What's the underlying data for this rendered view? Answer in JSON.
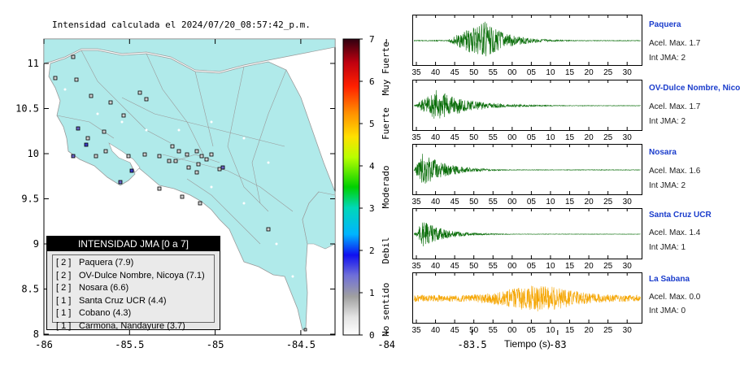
{
  "map": {
    "title": "Intensidad calculada el 2024/07/20_08:57:42_p.m.",
    "x_ticks": [
      "-86",
      "-85.5",
      "-85",
      "-84.5",
      "-84",
      "-83.5",
      "-83"
    ],
    "y_ticks": [
      "11",
      "10.5",
      "10",
      "9.5",
      "9",
      "8.5",
      "8"
    ],
    "land_color": "#b0eaea",
    "ocean_color": "#ffffff"
  },
  "colorbar": {
    "ticks": [
      "0",
      "1",
      "2",
      "3",
      "4",
      "5",
      "6",
      "7"
    ],
    "labels": [
      "No sentido",
      "Debil",
      "Moderado",
      "Fuerte",
      "Muy Fuerte"
    ]
  },
  "legend": {
    "header": "INTENSIDAD JMA [0 a 7]",
    "rows": [
      {
        "level": "[ 2 ]",
        "station": "Paquera (7.9)"
      },
      {
        "level": "[ 2 ]",
        "station": "OV-Dulce Nombre, Nicoya (7.1)"
      },
      {
        "level": "[ 2 ]",
        "station": "Nosara (6.6)"
      },
      {
        "level": "[ 1 ]",
        "station": "Santa Cruz UCR (4.4)"
      },
      {
        "level": "[ 1 ]",
        "station": "Cobano (4.3)"
      },
      {
        "level": "[ 1 ]",
        "station": "Carmona, Nandayure (3.7)"
      }
    ]
  },
  "waveforms": {
    "x_label": "Tiempo (s)",
    "stations": [
      {
        "name": "Paquera",
        "acel": "Acel. Max. 1.7",
        "int": "Int JMA: 2",
        "ticks": [
          "35",
          "40",
          "45",
          "50",
          "55",
          "00",
          "05",
          "10",
          "15",
          "20",
          "25",
          "30"
        ],
        "color": "#0a6e0a"
      },
      {
        "name": "OV-Dulce Nombre, Nicoya",
        "acel": "Acel. Max. 1.7",
        "int": "Int JMA: 2",
        "ticks": [
          "35",
          "40",
          "45",
          "50",
          "55",
          "00",
          "05",
          "10",
          "15",
          "20",
          "25",
          "30"
        ],
        "color": "#0a6e0a"
      },
      {
        "name": "Nosara",
        "acel": "Acel. Max. 1.6",
        "int": "Int JMA: 2",
        "ticks": [
          "35",
          "40",
          "45",
          "50",
          "55",
          "00",
          "05",
          "10",
          "15",
          "20",
          "25",
          "30"
        ],
        "color": "#0a6e0a"
      },
      {
        "name": "Santa Cruz UCR",
        "acel": "Acel. Max. 1.4",
        "int": "Int JMA: 1",
        "ticks": [
          "35",
          "40",
          "45",
          "50",
          "55",
          "00",
          "05",
          "10",
          "15",
          "20",
          "25",
          "30"
        ],
        "color": "#0a6e0a"
      },
      {
        "name": "La Sabana",
        "acel": "Acel. Max. 0.0",
        "int": "Int JMA: 0",
        "ticks": [
          "35",
          "40",
          "45",
          "50",
          "55",
          "00",
          "05",
          "10",
          "15",
          "20",
          "25",
          "30"
        ],
        "color": "#f5a500"
      }
    ]
  },
  "chart_data": [
    {
      "type": "scatter",
      "title": "Intensidad calculada el 2024/07/20_08:57:42_p.m.",
      "xlim": [
        -86,
        -82.6
      ],
      "ylim": [
        8,
        11.3
      ],
      "highlighted_stations": [
        {
          "station": "Paquera",
          "intensity": 2
        },
        {
          "station": "OV-Dulce Nombre, Nicoya",
          "intensity": 2
        },
        {
          "station": "Nosara",
          "intensity": 2
        },
        {
          "station": "Santa Cruz UCR",
          "intensity": 1
        },
        {
          "station": "Cobano",
          "intensity": 1
        },
        {
          "station": "Carmona, Nandayure",
          "intensity": 1
        }
      ],
      "colorbar_range": [
        0,
        7
      ]
    },
    {
      "type": "line",
      "x_label": "Tiempo (s)",
      "series": [
        {
          "name": "Paquera",
          "peak_acceleration": 1.7,
          "jma_intensity": 2
        },
        {
          "name": "OV-Dulce Nombre, Nicoya",
          "peak_acceleration": 1.7,
          "jma_intensity": 2
        },
        {
          "name": "Nosara",
          "peak_acceleration": 1.6,
          "jma_intensity": 2
        },
        {
          "name": "Santa Cruz UCR",
          "peak_acceleration": 1.4,
          "jma_intensity": 1
        },
        {
          "name": "La Sabana",
          "peak_acceleration": 0.0,
          "jma_intensity": 0
        }
      ]
    }
  ]
}
